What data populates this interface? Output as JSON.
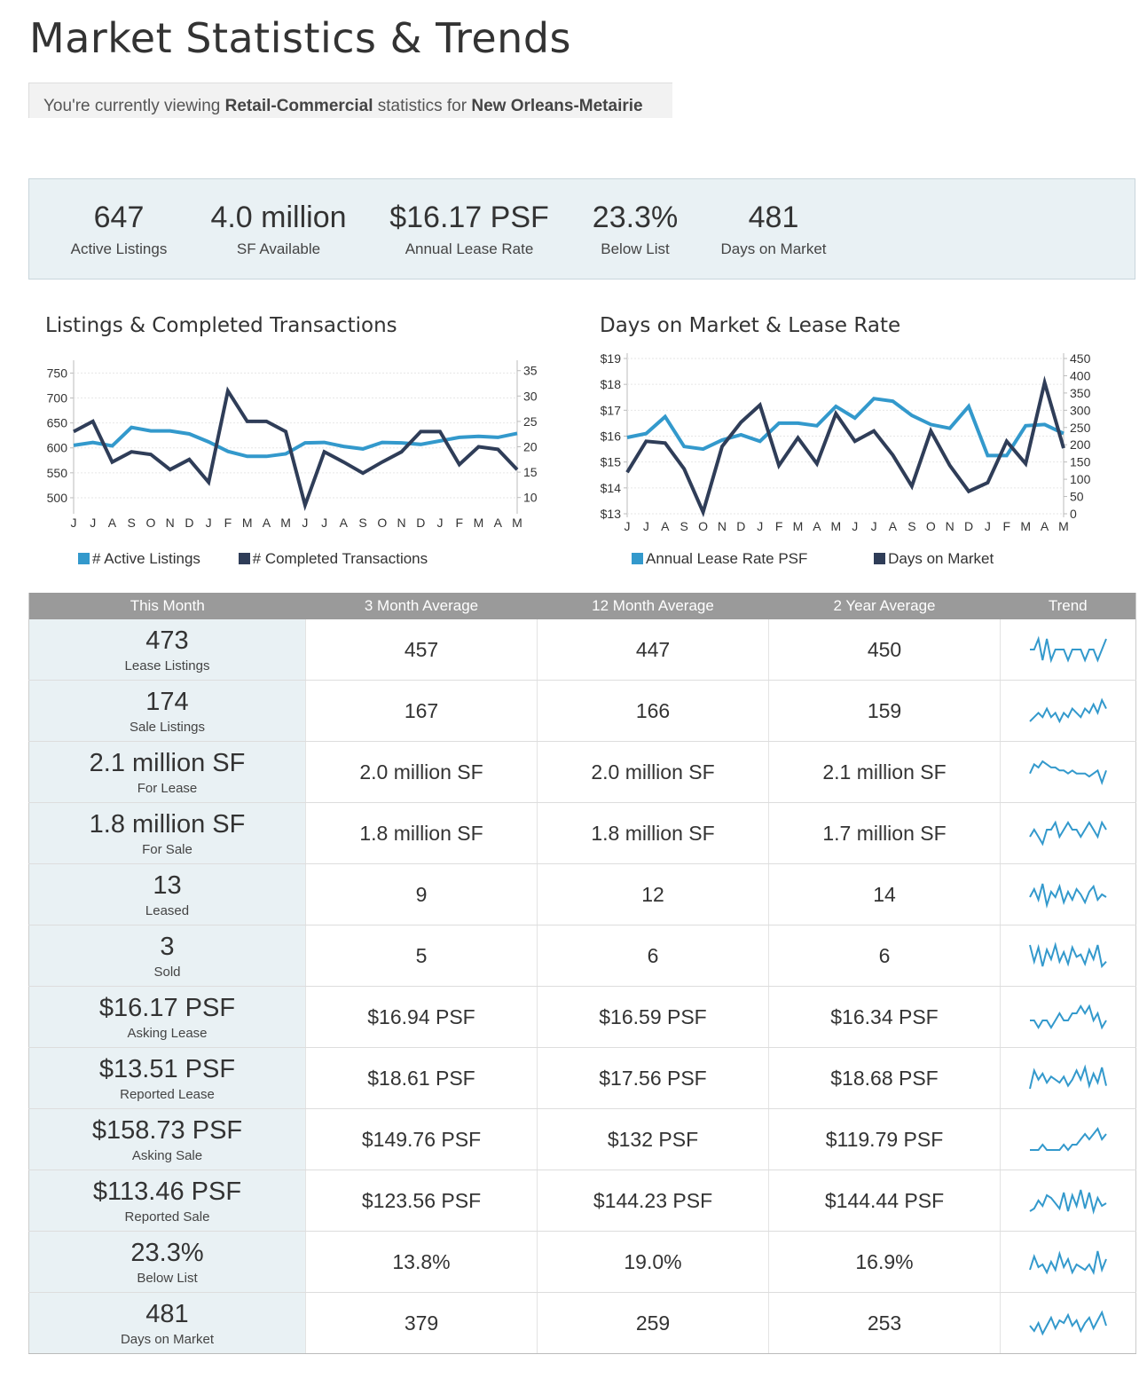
{
  "page": {
    "title": "Market Statistics & Trends",
    "context_prefix": "You're currently viewing ",
    "context_type": "Retail-Commercial",
    "context_mid": " statistics for ",
    "context_region": "New Orleans-Metairie"
  },
  "summary": [
    {
      "value": "647",
      "label": "Active Listings"
    },
    {
      "value": "4.0 million",
      "label": "SF Available"
    },
    {
      "value": "$16.17 PSF",
      "label": "Annual Lease Rate"
    },
    {
      "value": "23.3%",
      "label": "Below List"
    },
    {
      "value": "481",
      "label": "Days on Market"
    }
  ],
  "colors": {
    "light_series": "#3399cc",
    "dark_series": "#2f3d58",
    "header_bg": "#9a9a9a",
    "summary_bg": "#e9f1f4"
  },
  "chart_data": [
    {
      "type": "line",
      "title": "Listings & Completed Transactions",
      "x": [
        "J",
        "J",
        "A",
        "S",
        "O",
        "N",
        "D",
        "J",
        "F",
        "M",
        "A",
        "M",
        "J",
        "J",
        "A",
        "S",
        "O",
        "N",
        "D",
        "J",
        "F",
        "M",
        "A",
        "M"
      ],
      "left_axis": {
        "ylim": [
          475,
          765
        ],
        "ticks": [
          500,
          550,
          600,
          650,
          700,
          750
        ]
      },
      "right_axis": {
        "ylim": [
          7.5,
          36
        ],
        "ticks": [
          10,
          15,
          20,
          25,
          30,
          35
        ]
      },
      "series": [
        {
          "name": "# Active Listings",
          "axis": "left",
          "color": "#3399cc",
          "values": [
            605,
            611,
            604,
            641,
            634,
            634,
            628,
            612,
            593,
            583,
            583,
            588,
            610,
            611,
            603,
            598,
            611,
            610,
            607,
            614,
            621,
            623,
            621,
            629
          ]
        },
        {
          "name": "# Completed Transactions",
          "axis": "right",
          "color": "#2f3d58",
          "values": [
            23,
            25,
            17,
            19,
            18.5,
            15.5,
            17.5,
            13,
            31,
            25,
            25,
            23,
            8.5,
            19,
            17,
            14.8,
            17,
            19,
            23,
            23,
            16.5,
            20,
            19.5,
            15.5
          ]
        }
      ],
      "legend_position": "bottom"
    },
    {
      "type": "line",
      "title": "Days on Market & Lease Rate",
      "x": [
        "J",
        "J",
        "A",
        "S",
        "O",
        "N",
        "D",
        "J",
        "F",
        "M",
        "A",
        "M",
        "J",
        "J",
        "A",
        "S",
        "O",
        "N",
        "D",
        "J",
        "F",
        "M",
        "A",
        "M"
      ],
      "left_axis": {
        "ylim": [
          13,
          19
        ],
        "ticks": [
          "$13",
          "$14",
          "$15",
          "$16",
          "$17",
          "$18",
          "$19"
        ],
        "tick_values": [
          13,
          14,
          15,
          16,
          17,
          18,
          19
        ]
      },
      "right_axis": {
        "ylim": [
          0,
          450
        ],
        "ticks": [
          0,
          50,
          100,
          150,
          200,
          250,
          300,
          350,
          400,
          450
        ]
      },
      "series": [
        {
          "name": "Annual Lease Rate PSF",
          "axis": "left",
          "color": "#3399cc",
          "values": [
            15.95,
            16.1,
            16.75,
            15.6,
            15.5,
            15.85,
            16.05,
            15.8,
            16.5,
            16.5,
            16.4,
            17.15,
            16.7,
            17.45,
            17.35,
            16.8,
            16.45,
            16.3,
            17.15,
            15.25,
            15.25,
            16.4,
            16.45,
            16.1
          ]
        },
        {
          "name": "Days on Market",
          "axis": "right",
          "color": "#2f3d58",
          "values": [
            120,
            210,
            205,
            130,
            5,
            195,
            265,
            315,
            140,
            220,
            145,
            290,
            210,
            240,
            170,
            80,
            240,
            140,
            65,
            90,
            210,
            145,
            380,
            190
          ]
        }
      ],
      "legend_position": "bottom"
    }
  ],
  "table": {
    "headers": [
      "This Month",
      "3 Month Average",
      "12 Month Average",
      "2 Year Average",
      "Trend"
    ],
    "rows": [
      {
        "value": "473",
        "label": "Lease Listings",
        "m3": "457",
        "m12": "447",
        "y2": "450",
        "trend": [
          5,
          5,
          6,
          4,
          6,
          4,
          5,
          5,
          5,
          4,
          5,
          5,
          5,
          4,
          5,
          5,
          4,
          5,
          6
        ]
      },
      {
        "value": "174",
        "label": "Sale Listings",
        "m3": "167",
        "m12": "166",
        "y2": "159",
        "trend": [
          3,
          4,
          5,
          4,
          6,
          4,
          5,
          3,
          5,
          4,
          6,
          5,
          4,
          6,
          5,
          7,
          5,
          8,
          6
        ]
      },
      {
        "value": "2.1 million SF",
        "label": "For Lease",
        "m3": "2.0 million SF",
        "m12": "2.0 million SF",
        "y2": "2.1 million SF",
        "trend": [
          5,
          8,
          7,
          9,
          8,
          7,
          7,
          6,
          6,
          5,
          6,
          5,
          5,
          5,
          4,
          5,
          6,
          2,
          6
        ]
      },
      {
        "value": "1.8 million SF",
        "label": "For Sale",
        "m3": "1.8 million SF",
        "m12": "1.8 million SF",
        "y2": "1.7 million SF",
        "trend": [
          4,
          5,
          4,
          3,
          5,
          5,
          6,
          4,
          5,
          6,
          5,
          5,
          4,
          5,
          6,
          5,
          4,
          6,
          5
        ]
      },
      {
        "value": "13",
        "label": "Leased",
        "m3": "9",
        "m12": "12",
        "y2": "14",
        "trend": [
          5,
          8,
          4,
          10,
          2,
          7,
          5,
          9,
          3,
          7,
          4,
          8,
          6,
          3,
          7,
          9,
          4,
          6,
          5
        ]
      },
      {
        "value": "3",
        "label": "Sold",
        "m3": "5",
        "m12": "6",
        "y2": "6",
        "trend": [
          10,
          3,
          9,
          1,
          8,
          4,
          10,
          3,
          7,
          2,
          9,
          5,
          6,
          2,
          8,
          4,
          10,
          1,
          3
        ]
      },
      {
        "value": "$16.17 PSF",
        "label": "Asking Lease",
        "m3": "$16.94 PSF",
        "m12": "$16.59 PSF",
        "y2": "$16.34 PSF",
        "trend": [
          5,
          5,
          4,
          5,
          5,
          4,
          5,
          6,
          5,
          5,
          6,
          6,
          7,
          6,
          7,
          5,
          6,
          4,
          5
        ]
      },
      {
        "value": "$13.51 PSF",
        "label": "Reported Lease",
        "m3": "$18.61 PSF",
        "m12": "$17.56 PSF",
        "y2": "$18.68 PSF",
        "trend": [
          2,
          8,
          5,
          7,
          4,
          6,
          5,
          4,
          6,
          3,
          5,
          8,
          5,
          9,
          3,
          7,
          4,
          9,
          3
        ]
      },
      {
        "value": "$158.73 PSF",
        "label": "Asking Sale",
        "m3": "$149.76 PSF",
        "m12": "$132 PSF",
        "y2": "$119.79 PSF",
        "trend": [
          3,
          3,
          3,
          4,
          3,
          3,
          3,
          3,
          4,
          3,
          4,
          4,
          5,
          6,
          5,
          6,
          7,
          5,
          6
        ]
      },
      {
        "value": "$113.46 PSF",
        "label": "Reported Sale",
        "m3": "$123.56 PSF",
        "m12": "$144.23 PSF",
        "y2": "$144.44 PSF",
        "trend": [
          2,
          3,
          6,
          4,
          8,
          7,
          5,
          3,
          9,
          2,
          8,
          4,
          10,
          3,
          9,
          2,
          7,
          4,
          5
        ]
      },
      {
        "value": "23.3%",
        "label": "Below List",
        "m3": "13.8%",
        "m12": "19.0%",
        "y2": "16.9%",
        "trend": [
          3,
          8,
          4,
          5,
          2,
          6,
          3,
          9,
          4,
          7,
          2,
          5,
          4,
          3,
          5,
          2,
          10,
          3,
          7
        ]
      },
      {
        "value": "481",
        "label": "Days on Market",
        "m3": "379",
        "m12": "259",
        "y2": "253",
        "trend": [
          4,
          2,
          5,
          1,
          4,
          7,
          3,
          6,
          5,
          8,
          4,
          6,
          2,
          5,
          7,
          3,
          6,
          9,
          4
        ]
      }
    ]
  }
}
